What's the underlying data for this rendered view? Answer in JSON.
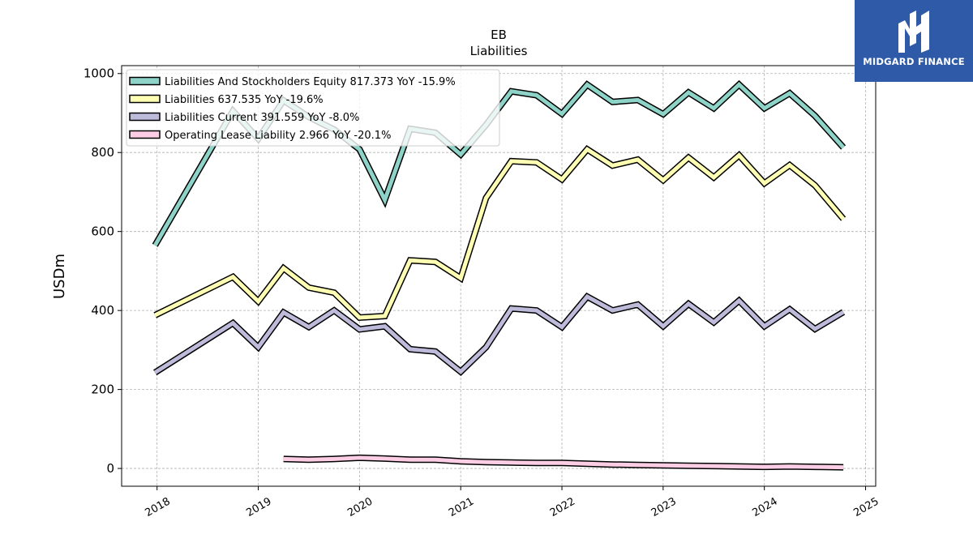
{
  "brand": {
    "name": "MIDGARD FINANCE",
    "logo_icon": "midgard-m-logo-icon",
    "bg_color": "#2f5aa8"
  },
  "chart_data": {
    "type": "line",
    "title": "EB",
    "subtitle": "Liabilities",
    "xlabel": "",
    "ylabel": "USDm",
    "xlim": [
      2017.65,
      2025.1
    ],
    "ylim": [
      -45,
      1020
    ],
    "x_ticks": [
      "2018",
      "2019",
      "2020",
      "2021",
      "2022",
      "2023",
      "2024",
      "2025"
    ],
    "y_ticks": [
      0,
      200,
      400,
      600,
      800,
      1000
    ],
    "grid": true,
    "legend_position": "top-left",
    "series": [
      {
        "name": "Liabilities And Stockholders Equity",
        "legend_label": "Liabilities And Stockholders Equity  817.373 YoY -15.9%",
        "color": "#8dd3c7",
        "x": [
          2017.98,
          2018.75,
          2019.0,
          2019.25,
          2019.5,
          2019.75,
          2020.0,
          2020.25,
          2020.5,
          2020.75,
          2021.0,
          2021.25,
          2021.5,
          2021.75,
          2022.0,
          2022.25,
          2022.5,
          2022.75,
          2023.0,
          2023.25,
          2023.5,
          2023.75,
          2024.0,
          2024.25,
          2024.5,
          2024.78
        ],
        "y": [
          565,
          905,
          835,
          932,
          890,
          858,
          808,
          680,
          860,
          850,
          795,
          870,
          955,
          945,
          898,
          972,
          928,
          933,
          897,
          952,
          912,
          972,
          912,
          950,
          893,
          813
        ]
      },
      {
        "name": "Liabilities",
        "legend_label": "Liabilities  637.535 YoY -19.6%",
        "color": "#ffffb3",
        "x": [
          2017.98,
          2018.75,
          2019.0,
          2019.25,
          2019.5,
          2019.75,
          2020.0,
          2020.25,
          2020.5,
          2020.75,
          2021.0,
          2021.25,
          2021.5,
          2021.75,
          2022.0,
          2022.25,
          2022.5,
          2022.75,
          2023.0,
          2023.25,
          2023.5,
          2023.75,
          2024.0,
          2024.25,
          2024.5,
          2024.78
        ],
        "y": [
          388,
          485,
          423,
          507,
          458,
          445,
          382,
          386,
          527,
          523,
          482,
          685,
          778,
          775,
          732,
          808,
          767,
          782,
          730,
          787,
          737,
          793,
          722,
          768,
          717,
          632
        ]
      },
      {
        "name": "Liabilities Current",
        "legend_label": "Liabilities Current  391.559 YoY -8.0%",
        "color": "#bebada",
        "x": [
          2017.98,
          2018.75,
          2019.0,
          2019.25,
          2019.5,
          2019.75,
          2020.0,
          2020.25,
          2020.5,
          2020.75,
          2021.0,
          2021.25,
          2021.5,
          2021.75,
          2022.0,
          2022.25,
          2022.5,
          2022.75,
          2023.0,
          2023.25,
          2023.5,
          2023.75,
          2024.0,
          2024.25,
          2024.5,
          2024.78
        ],
        "y": [
          243,
          368,
          307,
          395,
          358,
          400,
          352,
          360,
          302,
          296,
          245,
          307,
          405,
          400,
          358,
          435,
          400,
          415,
          360,
          417,
          370,
          425,
          360,
          403,
          353,
          396
        ]
      },
      {
        "name": "Operating Lease Liability",
        "legend_label": "Operating Lease Liability  2.966 YoY -20.1%",
        "color": "#fccde5",
        "x": [
          2019.25,
          2019.5,
          2019.75,
          2020.0,
          2020.25,
          2020.5,
          2020.75,
          2021.0,
          2021.25,
          2021.5,
          2021.75,
          2022.0,
          2022.25,
          2022.5,
          2022.75,
          2023.0,
          2023.25,
          2023.5,
          2023.75,
          2024.0,
          2024.25,
          2024.5,
          2024.78
        ],
        "y": [
          24,
          22,
          24,
          27,
          25,
          22,
          22,
          18,
          16,
          15,
          14,
          14,
          12,
          10,
          9,
          8,
          7,
          6,
          5,
          4,
          5,
          4,
          3
        ]
      }
    ]
  }
}
